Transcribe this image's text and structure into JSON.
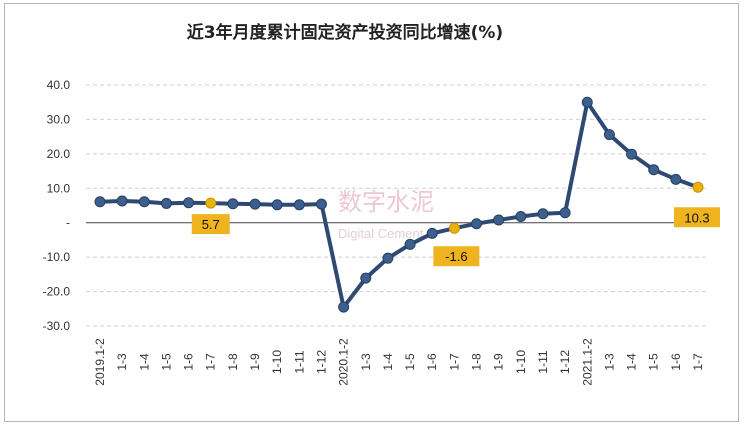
{
  "title": "近3年月度累计固定资产投资同比增速(%)",
  "watermark": {
    "main": "数字水泥",
    "sub": "Digital Cement"
  },
  "colors": {
    "line": "#2e4a73",
    "marker": "#3c5f8f",
    "highlight": "#e8b30f",
    "callout_bg": "#f0b320",
    "grid": "#d0d0d0",
    "zero_axis": "#444444"
  },
  "chart_data": {
    "type": "line",
    "title": "近3年月度累计固定资产投资同比增速(%)",
    "ylim": [
      -30,
      40
    ],
    "yticks": [
      {
        "value": 40,
        "label": "40.0"
      },
      {
        "value": 30,
        "label": "30.0"
      },
      {
        "value": 20,
        "label": "20.0"
      },
      {
        "value": 10,
        "label": "10.0"
      },
      {
        "value": 0,
        "label": "-"
      },
      {
        "value": -10,
        "label": "-10.0"
      },
      {
        "value": -20,
        "label": "-20.0"
      },
      {
        "value": -30,
        "label": "-30.0"
      }
    ],
    "grid": true,
    "categories": [
      "2019.1-2",
      "1-3",
      "1-4",
      "1-5",
      "1-6",
      "1-7",
      "1-8",
      "1-9",
      "1-10",
      "1-11",
      "1-12",
      "2020.1-2",
      "1-3",
      "1-4",
      "1-5",
      "1-6",
      "1-7",
      "1-8",
      "1-9",
      "1-10",
      "1-11",
      "1-12",
      "2021.1-2",
      "1-3",
      "1-4",
      "1-5",
      "1-6",
      "1-7"
    ],
    "values": [
      6.1,
      6.3,
      6.1,
      5.6,
      5.8,
      5.7,
      5.5,
      5.4,
      5.2,
      5.2,
      5.4,
      -24.5,
      -16.1,
      -10.3,
      -6.3,
      -3.1,
      -1.6,
      -0.3,
      0.8,
      1.8,
      2.6,
      2.9,
      35.0,
      25.6,
      19.9,
      15.4,
      12.6,
      10.3
    ],
    "highlights": [
      {
        "index": 5,
        "label": "5.7"
      },
      {
        "index": 16,
        "label": "-1.6"
      },
      {
        "index": 27,
        "label": "10.3"
      }
    ]
  }
}
